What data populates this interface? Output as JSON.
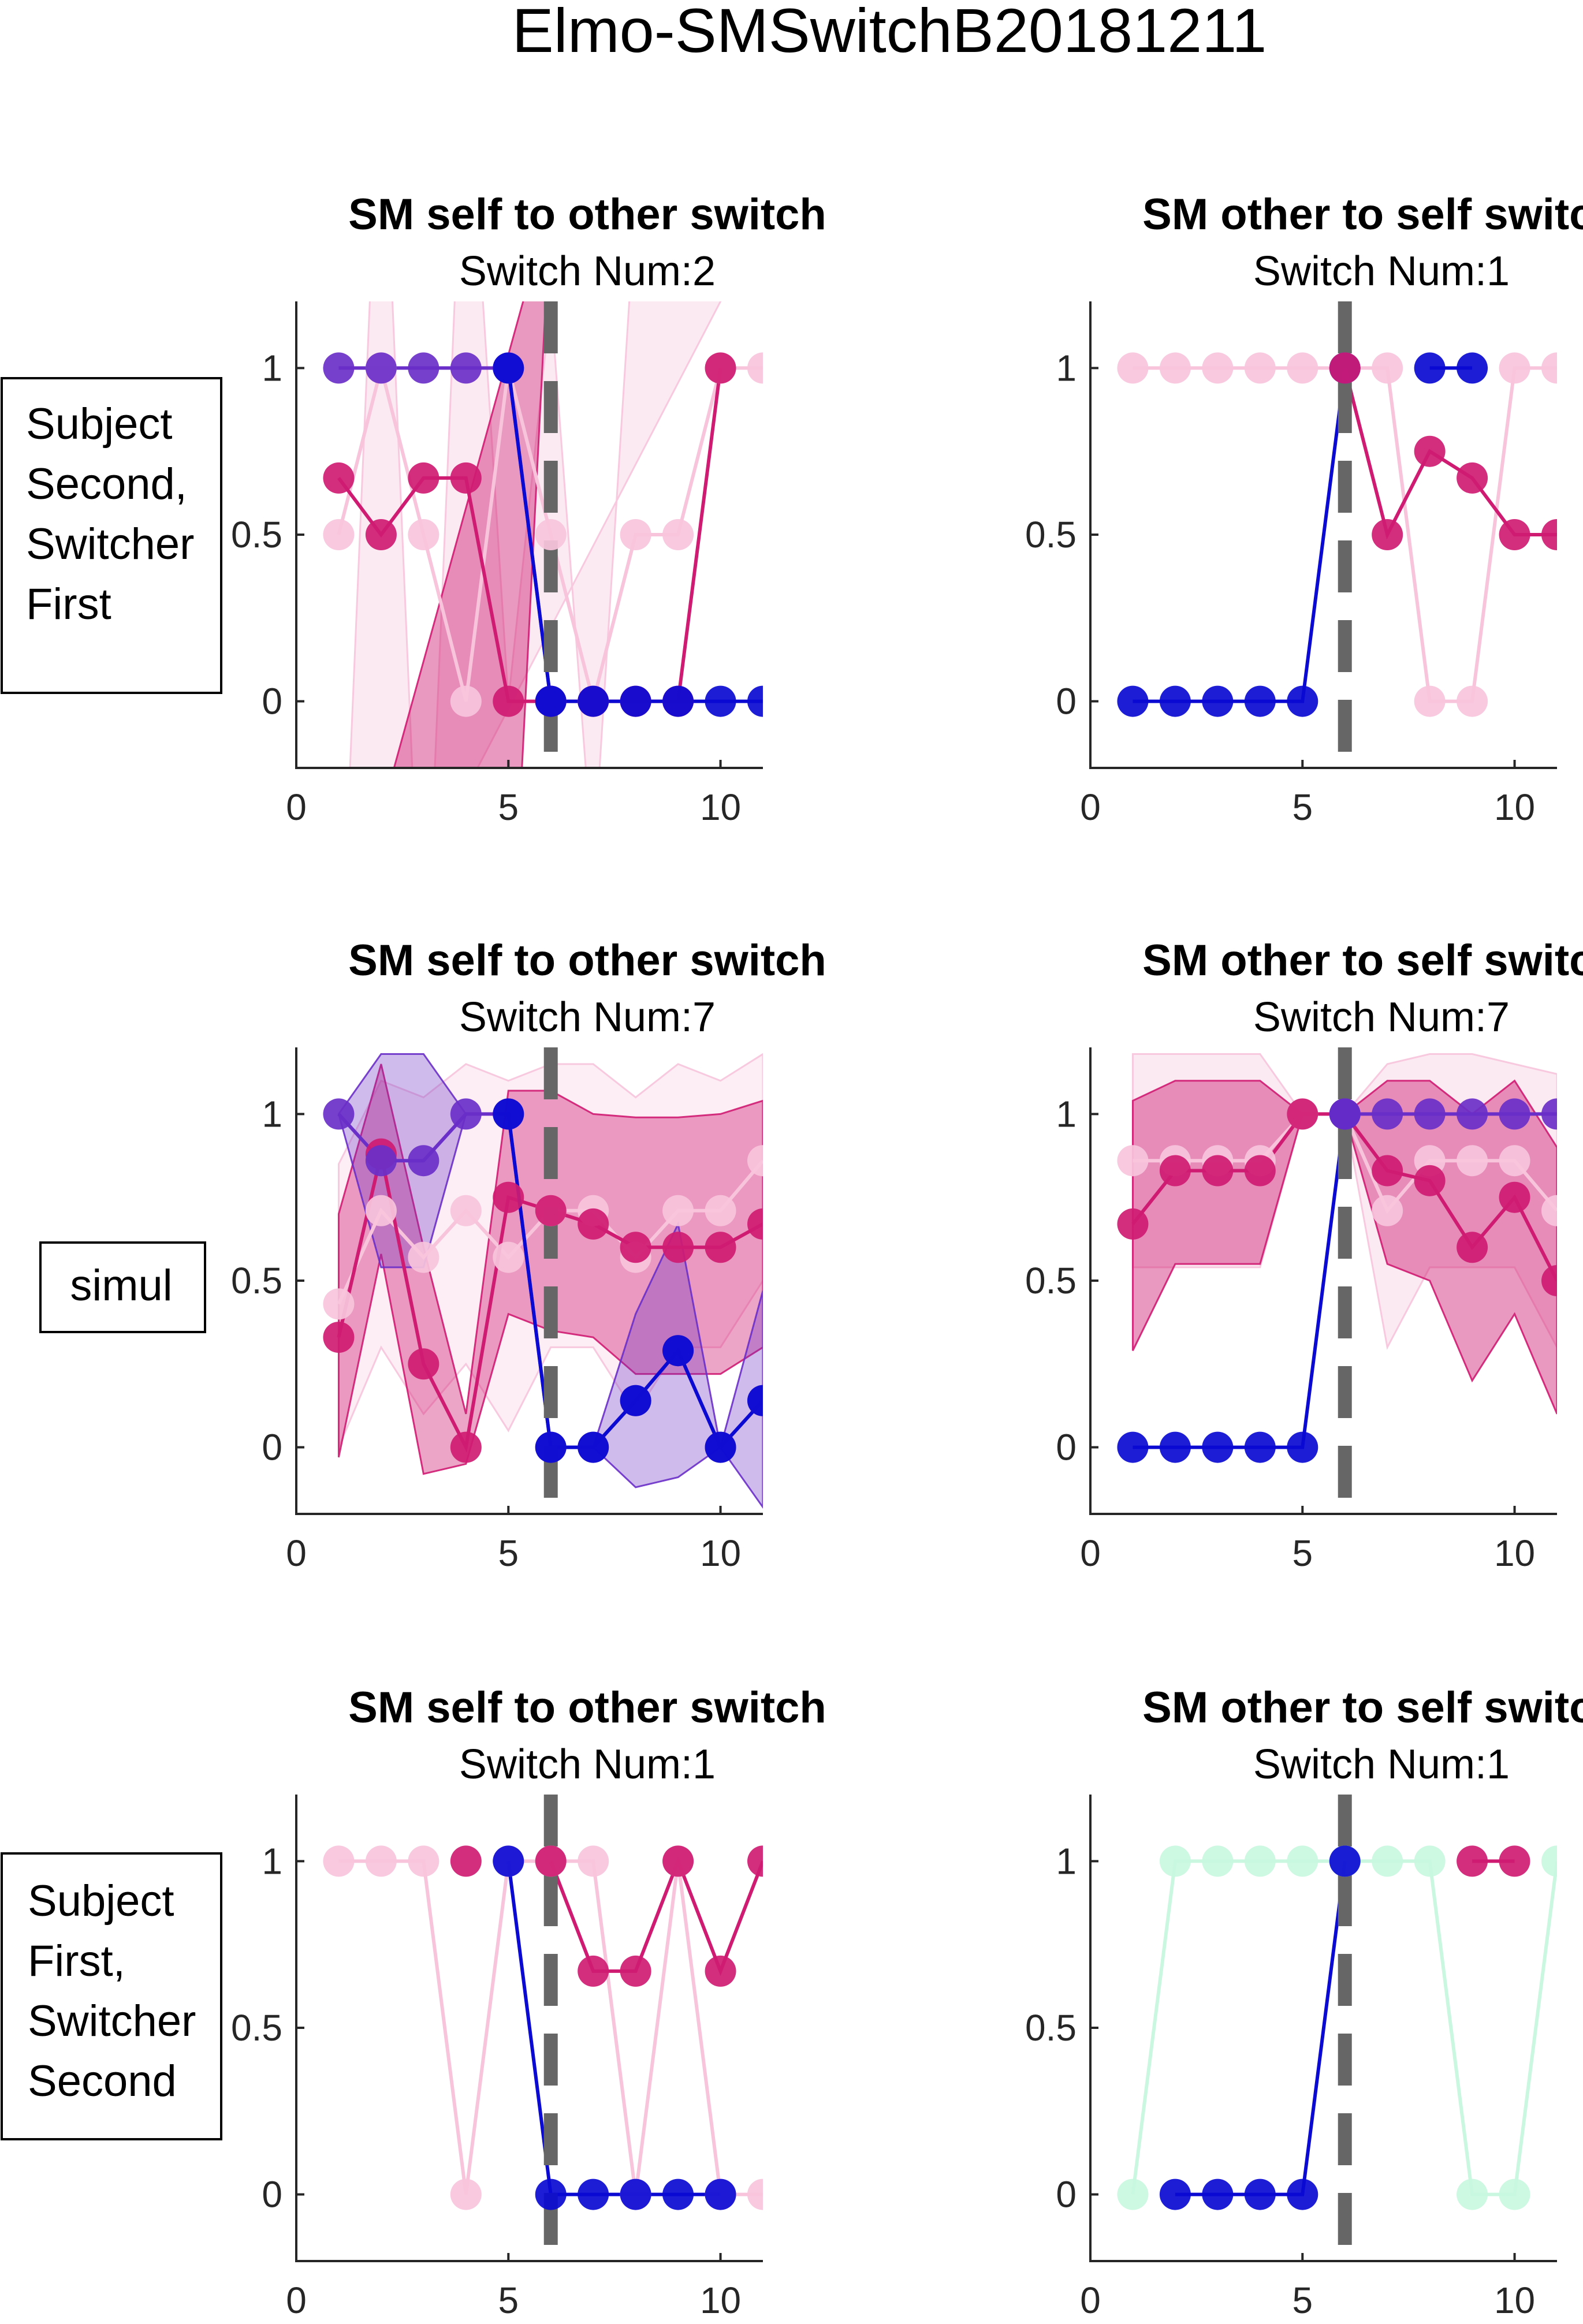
{
  "figure": {
    "title": "Elmo-SMSwitchB20181211"
  },
  "row_labels": [
    [
      "Subject",
      "Second,",
      "Switcher",
      "First"
    ],
    [
      "simul"
    ],
    [
      "Subject",
      "First,",
      "Switcher",
      "Second"
    ]
  ],
  "colors": {
    "blue": "#0a0ad2",
    "purple": "#6a2fc8",
    "magenta": "#cf1b72",
    "pink": "#f7c4dc",
    "mint": "#c9f7df",
    "switch_line": "#666666"
  },
  "axes_common": {
    "xlim": [
      0,
      11
    ],
    "ylim": [
      -0.2,
      1.2
    ],
    "xticks": [
      0,
      5,
      10
    ],
    "yticks": [
      0,
      0.5,
      1
    ],
    "switch_x": 6
  },
  "chart_data": [
    {
      "type": "line",
      "title": "SM self to other switch",
      "subtitle": "Switch Num:2",
      "show_yticklabels": true,
      "x": [
        1,
        2,
        3,
        4,
        5,
        6,
        7,
        8,
        9,
        10,
        11
      ],
      "series": [
        {
          "color": "#f7c4dc",
          "values": [
            0.5,
            1,
            0.5,
            0,
            1,
            0.5,
            0,
            0.5,
            0.5,
            1,
            1
          ],
          "band": [
            [
              1,
              -1
            ],
            [
              2,
              2
            ],
            [
              3,
              -1
            ],
            [
              4,
              2
            ],
            [
              5,
              0
            ],
            [
              6,
              1.2
            ],
            [
              7,
              -0.5
            ],
            [
              8,
              1.5
            ],
            [
              9,
              1.5
            ],
            [
              10,
              1.2
            ]
          ],
          "band_opacity": 0.35
        },
        {
          "color": "#cf1b72",
          "values": [
            0.67,
            0.5,
            0.67,
            0.67,
            0,
            0,
            0,
            0,
            0,
            1,
            null
          ],
          "band": [
            [
              1,
              -0.8
            ],
            [
              2,
              -1
            ],
            [
              3,
              -0.5
            ],
            [
              4,
              -0.8
            ],
            [
              5,
              -1
            ],
            [
              6,
              1.5
            ]
          ],
          "band_opacity": 0.45
        },
        {
          "color": "#6a2fc8",
          "values": [
            1,
            1,
            1,
            1,
            1,
            0,
            null,
            null,
            null,
            null,
            null
          ]
        },
        {
          "color": "#0a0ad2",
          "values": [
            null,
            null,
            null,
            null,
            1,
            0,
            0,
            0,
            0,
            0,
            0
          ]
        }
      ]
    },
    {
      "type": "line",
      "title": "SM other to self switch",
      "subtitle": "Switch Num:1",
      "show_yticklabels": true,
      "x": [
        1,
        2,
        3,
        4,
        5,
        6,
        7,
        8,
        9,
        10,
        11
      ],
      "series": [
        {
          "color": "#f7c4dc",
          "values": [
            1,
            1,
            1,
            1,
            1,
            1,
            1,
            0,
            0,
            1,
            1
          ]
        },
        {
          "color": "#0a0ad2",
          "values": [
            0,
            0,
            0,
            0,
            0,
            1,
            null,
            1,
            1,
            null,
            null
          ]
        },
        {
          "color": "#cf1b72",
          "values": [
            null,
            null,
            null,
            null,
            null,
            1,
            0.5,
            0.75,
            0.67,
            0.5,
            0.5
          ]
        }
      ]
    },
    {
      "type": "line",
      "title": "SM self to other switch",
      "subtitle": "Switch Num:7",
      "show_yticklabels": true,
      "x": [
        1,
        2,
        3,
        4,
        5,
        6,
        7,
        8,
        9,
        10,
        11
      ],
      "series": [
        {
          "color": "#f7c4dc",
          "values": [
            0.43,
            0.71,
            0.57,
            0.71,
            0.57,
            0.71,
            0.71,
            0.57,
            0.71,
            0.71,
            0.86
          ],
          "band_upper": [
            0.85,
            1.1,
            1.05,
            1.15,
            1.1,
            1.15,
            1.15,
            1.05,
            1.15,
            1.1,
            1.18
          ],
          "band_lower": [
            0.0,
            0.3,
            0.1,
            0.25,
            0.05,
            0.3,
            0.3,
            0.1,
            0.3,
            0.3,
            0.5
          ],
          "band_opacity": 0.3
        },
        {
          "color": "#cf1b72",
          "values": [
            0.33,
            0.88,
            0.25,
            0,
            0.75,
            0.71,
            0.67,
            0.6,
            0.6,
            0.6,
            0.67
          ],
          "band_upper": [
            0.7,
            1.15,
            0.6,
            0.1,
            1.07,
            1.07,
            1.0,
            0.99,
            0.99,
            1.0,
            1.04
          ],
          "band_lower": [
            -0.03,
            0.58,
            -0.08,
            -0.05,
            0.4,
            0.35,
            0.33,
            0.22,
            0.22,
            0.22,
            0.3
          ],
          "band_opacity": 0.4
        },
        {
          "color": "#6a2fc8",
          "values": [
            1,
            0.86,
            0.86,
            1,
            1,
            0,
            0,
            0.14,
            0.29,
            0,
            0.14
          ],
          "band_upper": [
            1,
            1.18,
            1.18,
            1,
            1,
            0,
            0,
            0.4,
            0.67,
            0,
            0.47
          ],
          "band_lower": [
            1,
            0.54,
            0.54,
            1,
            1,
            0,
            0,
            -0.12,
            -0.09,
            0,
            -0.18
          ],
          "band_opacity": 0.32
        },
        {
          "color": "#0a0ad2",
          "values": [
            null,
            null,
            null,
            null,
            1,
            0,
            0,
            0.14,
            0.29,
            0,
            0.14
          ]
        }
      ]
    },
    {
      "type": "line",
      "title": "SM other to self switch",
      "subtitle": "Switch Num:7",
      "show_yticklabels": true,
      "x": [
        1,
        2,
        3,
        4,
        5,
        6,
        7,
        8,
        9,
        10,
        11
      ],
      "series": [
        {
          "color": "#f7c4dc",
          "values": [
            0.86,
            0.86,
            0.86,
            0.86,
            1,
            1,
            0.71,
            0.86,
            0.86,
            0.86,
            0.71
          ],
          "band_upper": [
            1.18,
            1.18,
            1.18,
            1.18,
            1,
            1,
            1.15,
            1.18,
            1.18,
            1.15,
            1.12
          ],
          "band_lower": [
            0.54,
            0.54,
            0.54,
            0.54,
            1,
            1,
            0.3,
            0.54,
            0.54,
            0.54,
            0.3
          ],
          "band_opacity": 0.35
        },
        {
          "color": "#cf1b72",
          "values": [
            0.67,
            0.83,
            0.83,
            0.83,
            1,
            1,
            0.83,
            0.8,
            0.6,
            0.75,
            0.5
          ],
          "band_upper": [
            1.04,
            1.1,
            1.1,
            1.1,
            1,
            1,
            1.1,
            1.1,
            1.0,
            1.1,
            0.9
          ],
          "band_lower": [
            0.29,
            0.55,
            0.55,
            0.55,
            1,
            1,
            0.55,
            0.5,
            0.2,
            0.4,
            0.1
          ],
          "band_opacity": 0.45
        },
        {
          "color": "#0a0ad2",
          "values": [
            0,
            0,
            0,
            0,
            0,
            1,
            null,
            null,
            null,
            null,
            null
          ]
        },
        {
          "color": "#6a2fc8",
          "values": [
            null,
            null,
            null,
            null,
            null,
            1,
            1,
            1,
            1,
            1,
            1
          ]
        }
      ]
    },
    {
      "type": "line",
      "title": "SM self to other switch",
      "subtitle": "Switch Num:1",
      "show_yticklabels": true,
      "x": [
        1,
        2,
        3,
        4,
        5,
        6,
        7,
        8,
        9,
        10,
        11
      ],
      "series": [
        {
          "color": "#f7c4dc",
          "values": [
            1,
            1,
            1,
            0,
            1,
            1,
            1,
            0,
            1,
            0,
            0
          ]
        },
        {
          "color": "#cf1b72",
          "values": [
            null,
            null,
            null,
            1,
            null,
            1,
            0.67,
            0.67,
            1,
            0.67,
            1
          ]
        },
        {
          "color": "#0a0ad2",
          "values": [
            null,
            null,
            null,
            null,
            1,
            0,
            0,
            0,
            0,
            0,
            null
          ]
        }
      ]
    },
    {
      "type": "line",
      "title": "SM other to self switch",
      "subtitle": "Switch Num:1",
      "show_yticklabels": true,
      "x": [
        1,
        2,
        3,
        4,
        5,
        6,
        7,
        8,
        9,
        10,
        11
      ],
      "series": [
        {
          "color": "#c9f7df",
          "values": [
            0,
            1,
            1,
            1,
            1,
            1,
            1,
            1,
            0,
            0,
            1
          ]
        },
        {
          "color": "#0a0ad2",
          "values": [
            null,
            0,
            0,
            0,
            0,
            1,
            null,
            null,
            null,
            null,
            null
          ]
        },
        {
          "color": "#cf1b72",
          "values": [
            null,
            null,
            null,
            null,
            null,
            null,
            null,
            null,
            1,
            1,
            null
          ]
        }
      ]
    }
  ]
}
